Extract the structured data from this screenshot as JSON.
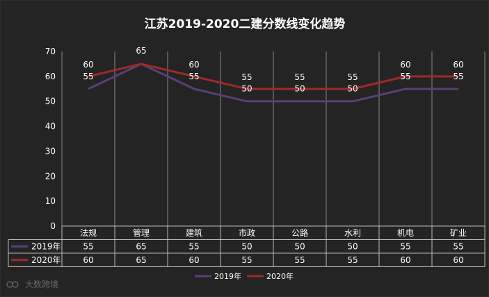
{
  "chart_data": {
    "type": "line",
    "title": "江苏2019-2020二建分数线变化趋势",
    "categories": [
      "法规",
      "管理",
      "建筑",
      "市政",
      "公路",
      "水利",
      "机电",
      "矿业"
    ],
    "series": [
      {
        "name": "2019年",
        "values": [
          55,
          65,
          55,
          50,
          50,
          50,
          55,
          55
        ],
        "color": "#5a3f7a"
      },
      {
        "name": "2020年",
        "values": [
          60,
          65,
          60,
          55,
          55,
          55,
          60,
          60
        ],
        "color": "#9e2a2b"
      }
    ],
    "ylim": [
      0,
      70
    ],
    "yticks": [
      0,
      10,
      20,
      30,
      40,
      50,
      60,
      70
    ],
    "xlabel": "",
    "ylabel": "",
    "data_table": true,
    "legend": "bottom"
  },
  "watermark": "大数跨境"
}
